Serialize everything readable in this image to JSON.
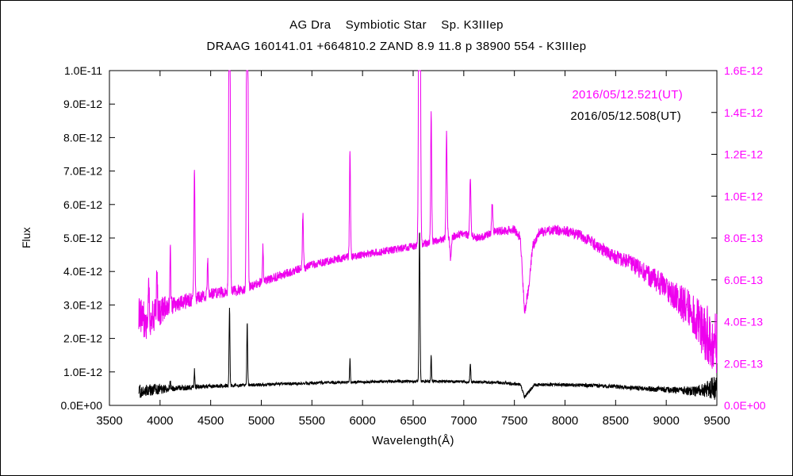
{
  "chart_data": {
    "type": "line",
    "title": "AG Dra    Symbiotic Star    Sp. K3IIIep",
    "subtitle": "DRAAG 160141.01 +664810.2 ZAND 8.9 11.8 p 38900 554 - K3IIIep",
    "xlabel": "Wavelength(Å)",
    "ylabel": "Flux",
    "grid": false,
    "legend_position": "top-right-inside",
    "x_range": [
      3500,
      9500
    ],
    "x_ticks": [
      3500,
      4000,
      4500,
      5000,
      5500,
      6000,
      6500,
      7000,
      7500,
      8000,
      8500,
      9000,
      9500
    ],
    "left_axis": {
      "range": [
        0,
        1e-11
      ],
      "ticks": [
        "0.0E+00",
        "1.0E-12",
        "2.0E-12",
        "3.0E-12",
        "4.0E-12",
        "5.0E-12",
        "6.0E-12",
        "7.0E-12",
        "8.0E-12",
        "9.0E-12",
        "1.0E-11"
      ],
      "color": "#000000"
    },
    "right_axis": {
      "range": [
        0,
        1.6e-12
      ],
      "ticks": [
        "0.0E+00",
        "2.0E-13",
        "4.0E-13",
        "6.0E-13",
        "8.0E-13",
        "1.0E-12",
        "1.2E-12",
        "1.4E-12",
        "1.6E-12"
      ],
      "color": "#ff00ff"
    },
    "series": [
      {
        "name": "2016/05/12.521(UT)",
        "color": "#ee00ee",
        "axis": "right",
        "x_start": 3790,
        "x_end": 9500,
        "continuum": [
          [
            3790,
            4.6e-13
          ],
          [
            3850,
            4e-13
          ],
          [
            3950,
            4.3e-13
          ],
          [
            4050,
            4.7e-13
          ],
          [
            4200,
            4.9e-13
          ],
          [
            4400,
            5.2e-13
          ],
          [
            4600,
            5.4e-13
          ],
          [
            4800,
            5.5e-13
          ],
          [
            5000,
            5.9e-13
          ],
          [
            5250,
            6.3e-13
          ],
          [
            5500,
            6.7e-13
          ],
          [
            5750,
            7e-13
          ],
          [
            6000,
            7.2e-13
          ],
          [
            6250,
            7.4e-13
          ],
          [
            6500,
            7.6e-13
          ],
          [
            6750,
            7.9e-13
          ],
          [
            7000,
            8.2e-13
          ],
          [
            7150,
            8e-13
          ],
          [
            7300,
            8.3e-13
          ],
          [
            7500,
            8.4e-13
          ],
          [
            7560,
            8e-13
          ],
          [
            7600,
            4.4e-13
          ],
          [
            7640,
            5.6e-13
          ],
          [
            7680,
            7.6e-13
          ],
          [
            7750,
            8.3e-13
          ],
          [
            7900,
            8.4e-13
          ],
          [
            8050,
            8.3e-13
          ],
          [
            8200,
            8e-13
          ],
          [
            8350,
            7.5e-13
          ],
          [
            8500,
            7.1e-13
          ],
          [
            8650,
            6.8e-13
          ],
          [
            8800,
            6.3e-13
          ],
          [
            8950,
            5.8e-13
          ],
          [
            9100,
            5.2e-13
          ],
          [
            9250,
            4.4e-13
          ],
          [
            9400,
            3.4e-13
          ],
          [
            9500,
            2.9e-13
          ]
        ],
        "noise": [
          [
            3790,
            1e-13
          ],
          [
            3950,
            8e-14
          ],
          [
            4100,
            4.5e-14
          ],
          [
            4400,
            3e-14
          ],
          [
            5000,
            2.2e-14
          ],
          [
            6000,
            1.8e-14
          ],
          [
            7000,
            1.8e-14
          ],
          [
            8000,
            2.5e-14
          ],
          [
            8600,
            3.5e-14
          ],
          [
            9000,
            6e-14
          ],
          [
            9250,
            1e-13
          ],
          [
            9400,
            1.4e-13
          ],
          [
            9500,
            1.6e-13
          ]
        ],
        "lines": [
          {
            "x": 3889,
            "peak": 1.5e-13,
            "width": 6
          },
          {
            "x": 3970,
            "peak": 2.2e-13,
            "width": 6
          },
          {
            "x": 4101,
            "peak": 2.6e-13,
            "width": 6
          },
          {
            "x": 4340,
            "peak": 6.2e-13,
            "width": 7
          },
          {
            "x": 4471,
            "peak": 1.8e-13,
            "width": 6
          },
          {
            "x": 4686,
            "peak": 2.2e-12,
            "width": 9
          },
          {
            "x": 4861,
            "peak": 2.6e-12,
            "width": 9
          },
          {
            "x": 5016,
            "peak": 1.6e-13,
            "width": 6
          },
          {
            "x": 5411,
            "peak": 2.6e-13,
            "width": 7
          },
          {
            "x": 5876,
            "peak": 5.2e-13,
            "width": 7
          },
          {
            "x": 6563,
            "peak": 2.8e-12,
            "width": 10
          },
          {
            "x": 6678,
            "peak": 6.2e-13,
            "width": 7
          },
          {
            "x": 6830,
            "peak": 5e-13,
            "width": 8
          },
          {
            "x": 6870,
            "peak": -1e-13,
            "width": 10
          },
          {
            "x": 7065,
            "peak": 2.6e-13,
            "width": 8
          },
          {
            "x": 7281,
            "peak": 1.4e-13,
            "width": 8
          }
        ]
      },
      {
        "name": "2016/05/12.508(UT)",
        "color": "#000000",
        "axis": "left",
        "x_start": 3790,
        "x_end": 9500,
        "continuum": [
          [
            3790,
            4.2e-13
          ],
          [
            3900,
            4.6e-13
          ],
          [
            4100,
            5e-13
          ],
          [
            4400,
            5.6e-13
          ],
          [
            4800,
            6e-13
          ],
          [
            5200,
            6.4e-13
          ],
          [
            5600,
            6.8e-13
          ],
          [
            6000,
            7e-13
          ],
          [
            6400,
            7.2e-13
          ],
          [
            6800,
            7.2e-13
          ],
          [
            7100,
            7e-13
          ],
          [
            7400,
            6.7e-13
          ],
          [
            7560,
            6.2e-13
          ],
          [
            7600,
            2.6e-13
          ],
          [
            7650,
            4.4e-13
          ],
          [
            7700,
            6.2e-13
          ],
          [
            7900,
            6.2e-13
          ],
          [
            8200,
            6e-13
          ],
          [
            8500,
            5.6e-13
          ],
          [
            8800,
            5e-13
          ],
          [
            9100,
            4.5e-13
          ],
          [
            9300,
            4.2e-13
          ],
          [
            9500,
            5.5e-13
          ]
        ],
        "noise": [
          [
            3790,
            2.2e-13
          ],
          [
            3950,
            1.6e-13
          ],
          [
            4150,
            9e-14
          ],
          [
            4500,
            6e-14
          ],
          [
            5000,
            4.5e-14
          ],
          [
            6000,
            4e-14
          ],
          [
            7000,
            4e-14
          ],
          [
            8000,
            5e-14
          ],
          [
            8700,
            7e-14
          ],
          [
            9100,
            1e-13
          ],
          [
            9350,
            1.8e-13
          ],
          [
            9500,
            4e-13
          ]
        ],
        "lines": [
          {
            "x": 4101,
            "peak": 2.5e-13,
            "width": 5
          },
          {
            "x": 4340,
            "peak": 5e-13,
            "width": 5
          },
          {
            "x": 4686,
            "peak": 2.35e-12,
            "width": 6
          },
          {
            "x": 4861,
            "peak": 1.85e-12,
            "width": 6
          },
          {
            "x": 5876,
            "peak": 7e-13,
            "width": 5
          },
          {
            "x": 6563,
            "peak": 4.5e-12,
            "width": 7
          },
          {
            "x": 6678,
            "peak": 8e-13,
            "width": 5
          },
          {
            "x": 7065,
            "peak": 5e-13,
            "width": 6
          }
        ]
      }
    ]
  }
}
